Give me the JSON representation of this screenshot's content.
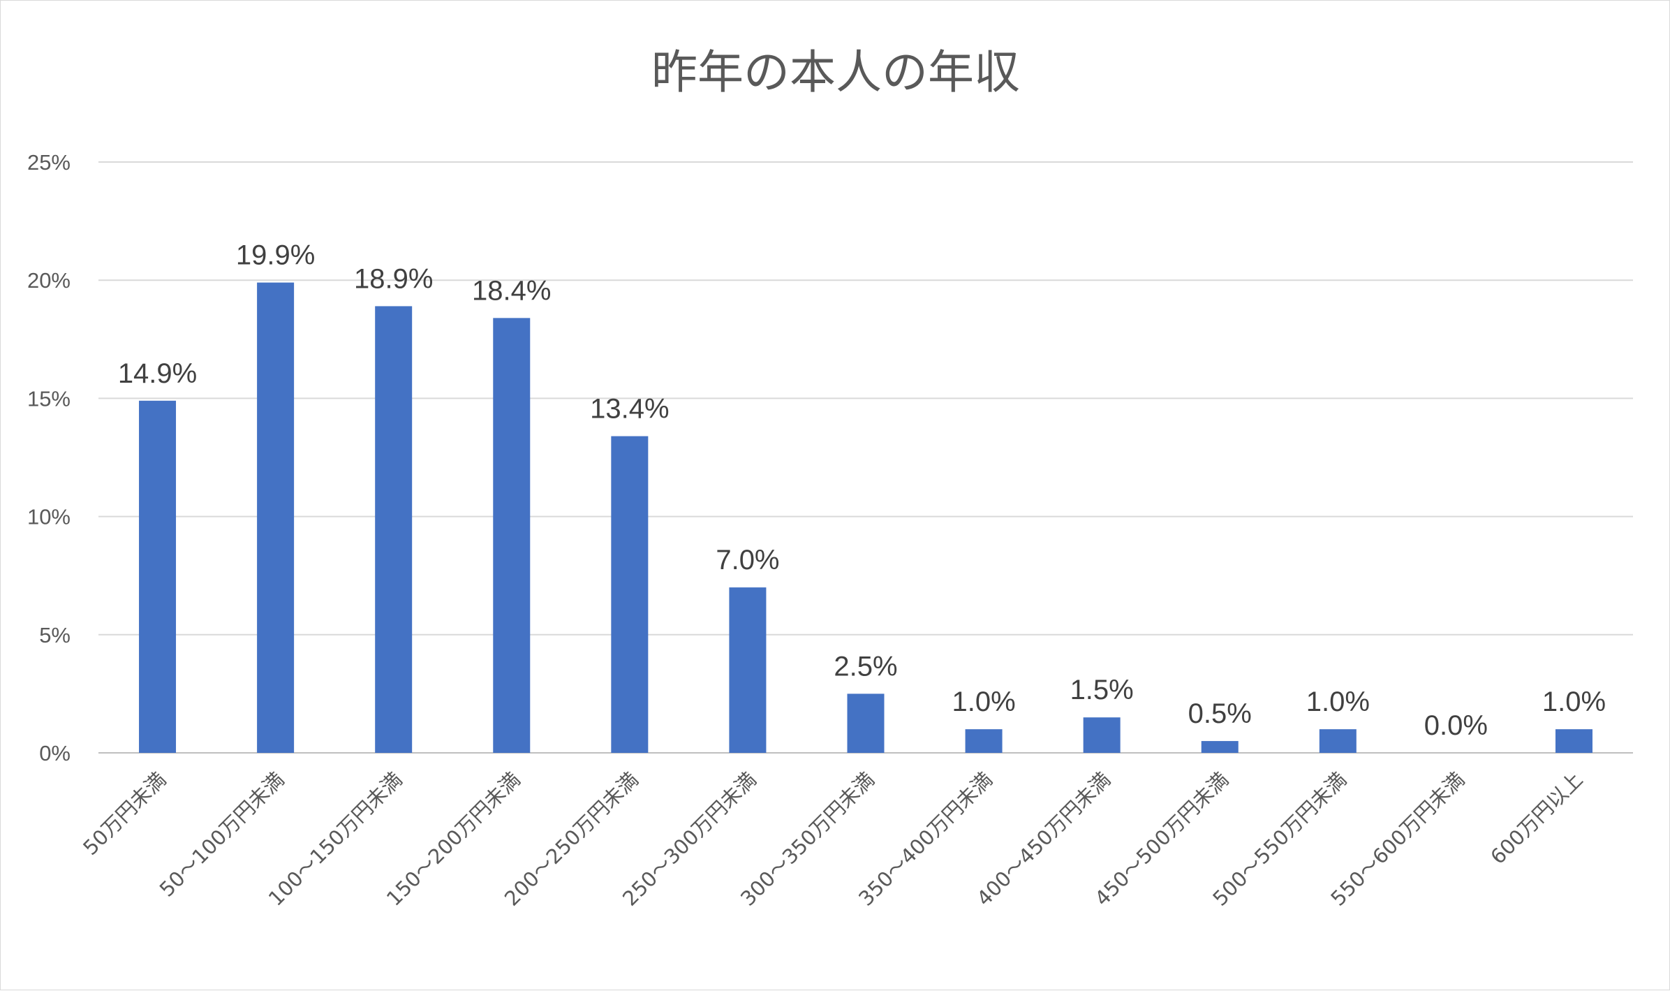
{
  "chart_data": {
    "type": "bar",
    "title": "昨年の本人の年収",
    "categories": [
      "50万円未満",
      "50～100万円未満",
      "100～150万円未満",
      "150～200万円未満",
      "200～250万円未満",
      "250～300万円未満",
      "300～350万円未満",
      "350～400万円未満",
      "400～450万円未満",
      "450～500万円未満",
      "500～550万円未満",
      "550～600万円未満",
      "600万円以上"
    ],
    "values": [
      14.9,
      19.9,
      18.9,
      18.4,
      13.4,
      7.0,
      2.5,
      1.0,
      1.5,
      0.5,
      1.0,
      0.0,
      1.0
    ],
    "data_labels": [
      "14.9%",
      "19.9%",
      "18.9%",
      "18.4%",
      "13.4%",
      "7.0%",
      "2.5%",
      "1.0%",
      "1.5%",
      "0.5%",
      "1.0%",
      "0.0%",
      "1.0%"
    ],
    "yticks": [
      "0%",
      "5%",
      "10%",
      "15%",
      "20%",
      "25%"
    ],
    "ylim": [
      0,
      25
    ],
    "xlabel": "",
    "ylabel": "",
    "grid": true,
    "legend": "none",
    "bar_color": "#4472c4"
  }
}
